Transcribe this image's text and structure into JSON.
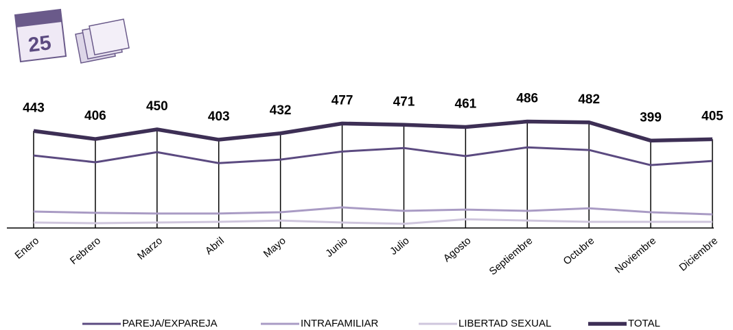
{
  "icon": {
    "calendar_day": "25"
  },
  "chart_data": {
    "type": "line",
    "categories": [
      "Enero",
      "Febrero",
      "Marzo",
      "Abril",
      "Mayo",
      "Junio",
      "Julio",
      "Agosto",
      "Septiembre",
      "Octubre",
      "Noviembre",
      "Diciembre"
    ],
    "series": [
      {
        "name": "PAREJA/EXPAREJA",
        "color": "#5b4a80",
        "values": [
          331,
          300,
          346,
          296,
          312,
          349,
          365,
          328,
          368,
          356,
          287,
          306
        ]
      },
      {
        "name": "INTRAFAMILIAR",
        "color": "#a99bc4",
        "values": [
          75,
          69,
          66,
          66,
          72,
          94,
          78,
          84,
          78,
          90,
          72,
          62
        ]
      },
      {
        "name": "LIBERTAD SEXUAL",
        "color": "#cfc6dd",
        "values": [
          25,
          22,
          25,
          28,
          34,
          25,
          19,
          40,
          34,
          28,
          28,
          28
        ]
      },
      {
        "name": "TOTAL",
        "color": "#3d2f55",
        "values": [
          443,
          406,
          450,
          403,
          432,
          477,
          471,
          461,
          486,
          482,
          399,
          405
        ],
        "data_labels": true
      }
    ],
    "ylim": [
      0,
      500
    ]
  }
}
